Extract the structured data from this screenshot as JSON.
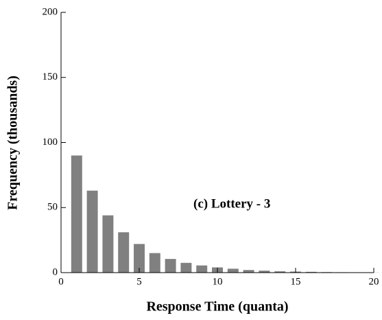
{
  "chart_data": {
    "type": "bar",
    "x_label": "Response Time (quanta)",
    "y_label": "Frequency (thousands)",
    "annotation": "(c) Lottery - 3",
    "x": [
      1,
      2,
      3,
      4,
      5,
      6,
      7,
      8,
      9,
      10,
      11,
      12,
      13,
      14,
      15,
      16,
      17,
      18,
      19,
      20
    ],
    "values": [
      90,
      63,
      44,
      31,
      22,
      15,
      10.5,
      7.5,
      5.5,
      4,
      3,
      2,
      1.5,
      1,
      0.8,
      0.6,
      0.4,
      0.3,
      0.2,
      0.1
    ],
    "color": "#808080",
    "xlim": [
      0,
      20
    ],
    "xticks": [
      0,
      5,
      10,
      15,
      20
    ],
    "ylim": [
      0,
      200
    ],
    "yticks": [
      0,
      50,
      100,
      150,
      200
    ],
    "grid": false
  }
}
